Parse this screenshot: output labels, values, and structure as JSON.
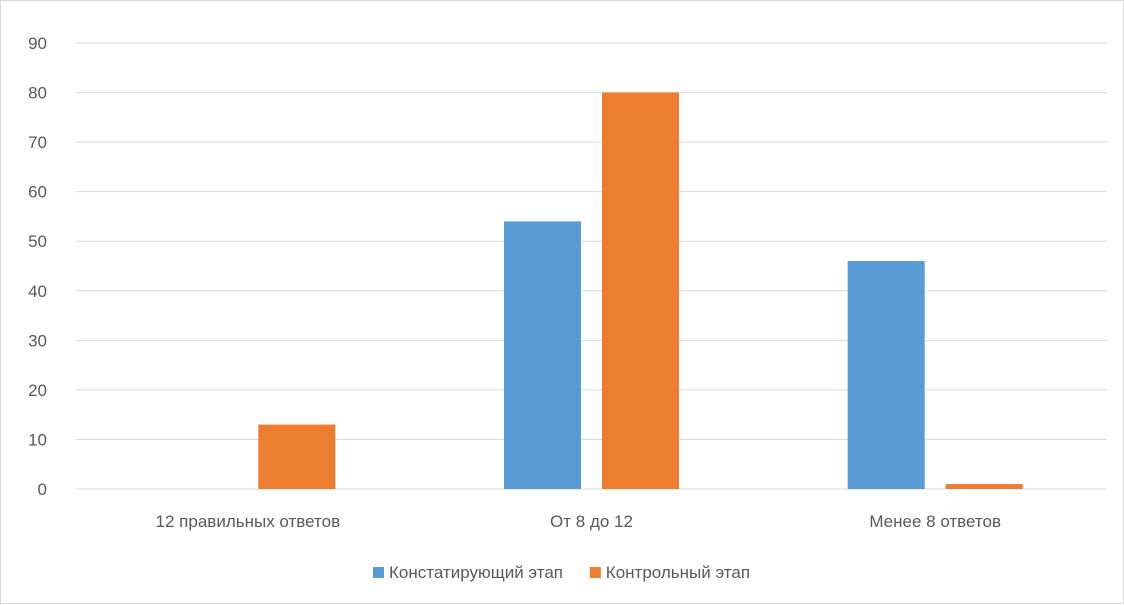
{
  "chart_data": {
    "type": "bar",
    "categories": [
      "12 правильных ответов",
      "От 8 до 12",
      "Менее 8 ответов"
    ],
    "series": [
      {
        "name": "Констатирующий этап",
        "values": [
          0,
          54,
          46
        ],
        "color": "#5b9bd5"
      },
      {
        "name": "Контрольный этап",
        "values": [
          13,
          80,
          1
        ],
        "color": "#ed7d31"
      }
    ],
    "yticks": [
      "0",
      "10",
      "20",
      "30",
      "40",
      "50",
      "60",
      "70",
      "80",
      "90"
    ],
    "ylim": [
      0,
      90
    ],
    "grid": true,
    "legend_position": "bottom",
    "gridline_color": "#d9d9d9"
  }
}
